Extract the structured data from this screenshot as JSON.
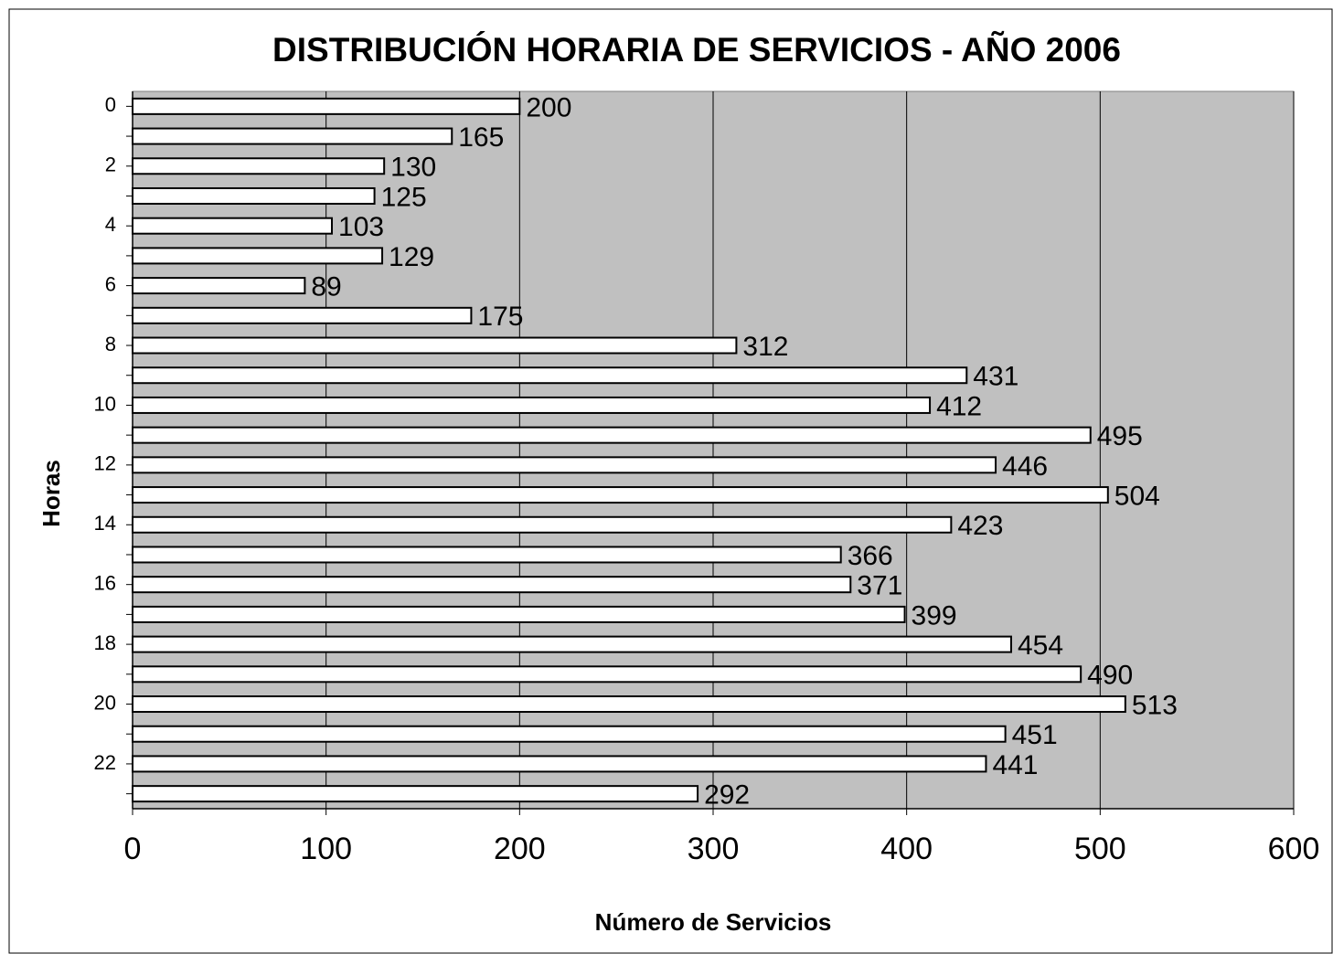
{
  "chart_data": {
    "type": "bar",
    "orientation": "horizontal",
    "title": "DISTRIBUCIÓN HORARIA DE SERVICIOS - AÑO 2006",
    "x_label": "Número de Servicios",
    "y_label": "Horas",
    "categories": [
      0,
      null,
      2,
      null,
      4,
      null,
      6,
      null,
      8,
      null,
      10,
      null,
      12,
      null,
      14,
      null,
      16,
      null,
      18,
      null,
      20,
      null,
      22,
      null
    ],
    "values": [
      200,
      165,
      130,
      125,
      103,
      129,
      89,
      175,
      312,
      431,
      412,
      495,
      446,
      504,
      423,
      366,
      371,
      399,
      454,
      490,
      513,
      451,
      441,
      292
    ],
    "color": "#ffffff",
    "background": "#c0c0c0",
    "xlim": [
      0,
      600
    ],
    "xticks": [
      0,
      100,
      200,
      300,
      400,
      500,
      600
    ],
    "grid": true
  }
}
